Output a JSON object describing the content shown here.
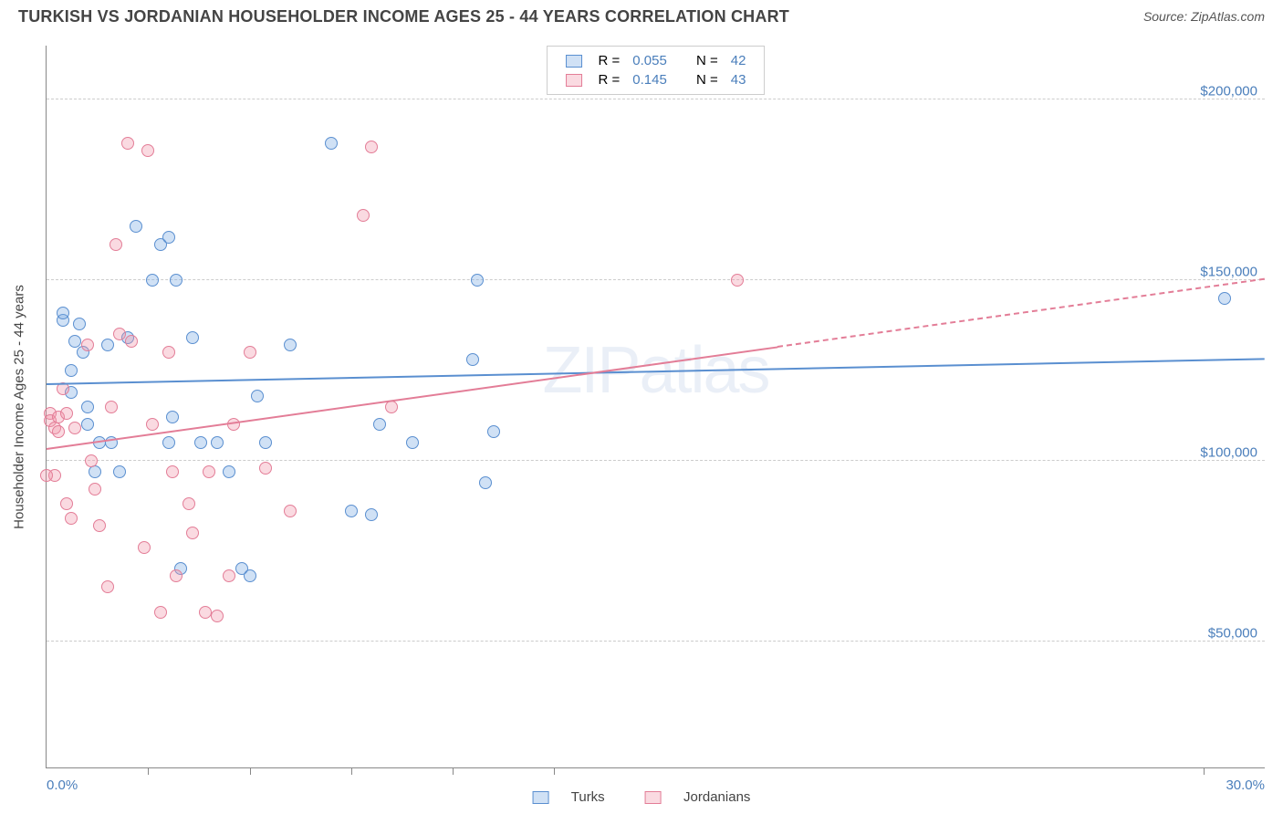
{
  "title": "TURKISH VS JORDANIAN HOUSEHOLDER INCOME AGES 25 - 44 YEARS CORRELATION CHART",
  "source_label": "Source: ",
  "source_name": "ZipAtlas.com",
  "watermark_a": "ZIP",
  "watermark_b": "atlas",
  "yaxis_title": "Householder Income Ages 25 - 44 years",
  "chart": {
    "type": "scatter",
    "xlim": [
      0,
      30
    ],
    "ylim": [
      15000,
      215000
    ],
    "x_min_label": "0.0%",
    "x_max_label": "30.0%",
    "y_ticks": [
      50000,
      100000,
      150000,
      200000
    ],
    "y_tick_labels": [
      "$50,000",
      "$100,000",
      "$150,000",
      "$200,000"
    ],
    "x_tick_positions": [
      2.5,
      5,
      7.5,
      10,
      12.5,
      28.5
    ],
    "grid_color": "#cccccc",
    "background_color": "#ffffff",
    "axis_color": "#888888",
    "marker_radius": 7,
    "marker_stroke_width": 1.5,
    "series": [
      {
        "name": "Turks",
        "color_fill": "rgba(120,170,225,0.35)",
        "color_stroke": "#5a8fd0",
        "R": "0.055",
        "N": "42",
        "trend": {
          "x1": 0,
          "y1": 121000,
          "x2": 30,
          "y2": 128000,
          "x_solid_end": 30
        },
        "points": [
          [
            0.4,
            139000
          ],
          [
            0.4,
            141000
          ],
          [
            0.6,
            125000
          ],
          [
            0.6,
            119000
          ],
          [
            0.7,
            133000
          ],
          [
            0.8,
            138000
          ],
          [
            0.9,
            130000
          ],
          [
            1.0,
            110000
          ],
          [
            1.0,
            115000
          ],
          [
            1.2,
            97000
          ],
          [
            1.3,
            105000
          ],
          [
            1.5,
            132000
          ],
          [
            1.6,
            105000
          ],
          [
            1.8,
            97000
          ],
          [
            2.0,
            134000
          ],
          [
            2.2,
            165000
          ],
          [
            2.6,
            150000
          ],
          [
            2.8,
            160000
          ],
          [
            3.0,
            105000
          ],
          [
            3.0,
            162000
          ],
          [
            3.2,
            150000
          ],
          [
            3.3,
            70000
          ],
          [
            3.6,
            134000
          ],
          [
            3.8,
            105000
          ],
          [
            4.2,
            105000
          ],
          [
            4.5,
            97000
          ],
          [
            4.8,
            70000
          ],
          [
            5.0,
            68000
          ],
          [
            5.2,
            118000
          ],
          [
            5.4,
            105000
          ],
          [
            6.0,
            132000
          ],
          [
            7.0,
            188000
          ],
          [
            7.5,
            86000
          ],
          [
            8.0,
            85000
          ],
          [
            8.2,
            110000
          ],
          [
            9.0,
            105000
          ],
          [
            10.5,
            128000
          ],
          [
            10.6,
            150000
          ],
          [
            10.8,
            94000
          ],
          [
            11.0,
            108000
          ],
          [
            29.0,
            145000
          ],
          [
            3.1,
            112000
          ]
        ]
      },
      {
        "name": "Jordanians",
        "color_fill": "rgba(240,150,170,0.35)",
        "color_stroke": "#e37d97",
        "R": "0.145",
        "N": "43",
        "trend": {
          "x1": 0,
          "y1": 103000,
          "x2": 30,
          "y2": 150000,
          "x_solid_end": 18
        },
        "points": [
          [
            0.1,
            113000
          ],
          [
            0.1,
            111000
          ],
          [
            0.2,
            109000
          ],
          [
            0.3,
            108000
          ],
          [
            0.3,
            112000
          ],
          [
            0.4,
            120000
          ],
          [
            0.5,
            113000
          ],
          [
            0.5,
            88000
          ],
          [
            0.6,
            84000
          ],
          [
            0.7,
            109000
          ],
          [
            1.0,
            132000
          ],
          [
            1.1,
            100000
          ],
          [
            1.2,
            92000
          ],
          [
            1.3,
            82000
          ],
          [
            1.5,
            65000
          ],
          [
            1.6,
            115000
          ],
          [
            1.7,
            160000
          ],
          [
            1.8,
            135000
          ],
          [
            2.0,
            188000
          ],
          [
            2.1,
            133000
          ],
          [
            2.4,
            76000
          ],
          [
            2.5,
            186000
          ],
          [
            2.6,
            110000
          ],
          [
            2.8,
            58000
          ],
          [
            3.0,
            130000
          ],
          [
            3.1,
            97000
          ],
          [
            3.2,
            68000
          ],
          [
            3.5,
            88000
          ],
          [
            3.6,
            80000
          ],
          [
            3.9,
            58000
          ],
          [
            4.0,
            97000
          ],
          [
            4.2,
            57000
          ],
          [
            4.5,
            68000
          ],
          [
            4.6,
            110000
          ],
          [
            5.0,
            130000
          ],
          [
            5.4,
            98000
          ],
          [
            6.0,
            86000
          ],
          [
            7.8,
            168000
          ],
          [
            8.0,
            187000
          ],
          [
            8.5,
            115000
          ],
          [
            17.0,
            150000
          ],
          [
            0.2,
            96000
          ],
          [
            0.0,
            96000
          ]
        ]
      }
    ]
  },
  "legend_top": {
    "r_label": "R =",
    "n_label": "N ="
  },
  "legend_bottom": {
    "label_a": "Turks",
    "label_b": "Jordanians"
  }
}
